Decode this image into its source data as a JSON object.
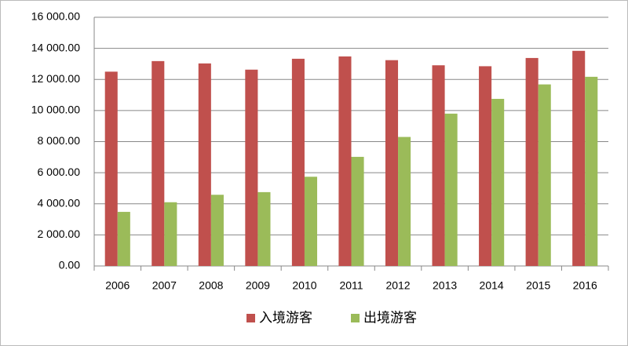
{
  "chart_data": {
    "type": "bar",
    "categories": [
      "2006",
      "2007",
      "2008",
      "2009",
      "2010",
      "2011",
      "2012",
      "2013",
      "2014",
      "2015",
      "2016"
    ],
    "series": [
      {
        "name": "入境游客",
        "color": "#c0504d",
        "values": [
          12500,
          13180,
          13030,
          12630,
          13330,
          13480,
          13240,
          12910,
          12850,
          13380,
          13840
        ]
      },
      {
        "name": "出境游客",
        "color": "#9bbb59",
        "values": [
          3480,
          4100,
          4580,
          4750,
          5740,
          7020,
          8300,
          9800,
          10750,
          11680,
          12170
        ]
      }
    ],
    "ylim": [
      0,
      16000
    ],
    "yticks": [
      {
        "value": 0,
        "label": "0.00"
      },
      {
        "value": 2000,
        "label": "2 000.00"
      },
      {
        "value": 4000,
        "label": "4 000.00"
      },
      {
        "value": 6000,
        "label": "6 000.00"
      },
      {
        "value": 8000,
        "label": "8 000.00"
      },
      {
        "value": 10000,
        "label": "10 000.00"
      },
      {
        "value": 12000,
        "label": "12 000.00"
      },
      {
        "value": 14000,
        "label": "14 000.00"
      },
      {
        "value": 16000,
        "label": "16 000.00"
      }
    ],
    "grid": true,
    "legend": "bottom"
  }
}
